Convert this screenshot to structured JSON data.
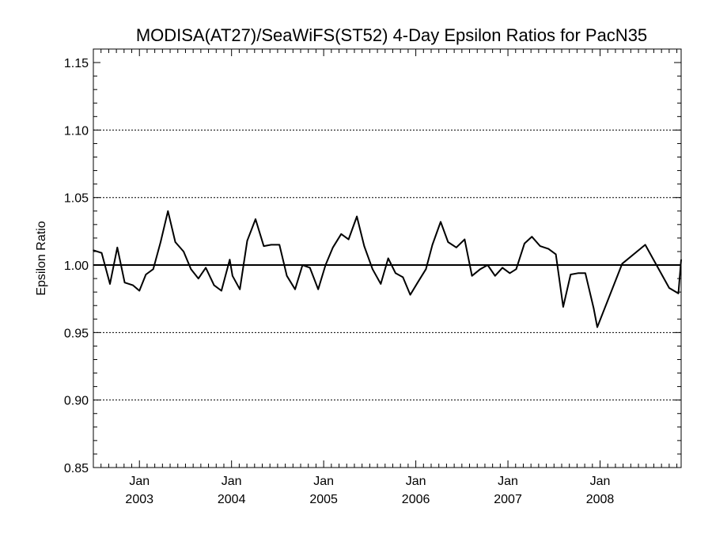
{
  "chart_data": {
    "type": "line",
    "title": "MODISA(AT27)/SeaWiFS(ST52) 4-Day Epsilon Ratios for PacN35",
    "xlabel": "",
    "ylabel": "Epsilon Ratio",
    "xlim": [
      2002.5,
      2008.88
    ],
    "ylim": [
      0.85,
      1.16
    ],
    "yticks": [
      {
        "value": 0.85,
        "label": "0.85"
      },
      {
        "value": 0.9,
        "label": "0.90"
      },
      {
        "value": 0.95,
        "label": "0.95"
      },
      {
        "value": 1.0,
        "label": "1.00"
      },
      {
        "value": 1.05,
        "label": "1.05"
      },
      {
        "value": 1.1,
        "label": "1.10"
      },
      {
        "value": 1.15,
        "label": "1.15"
      }
    ],
    "xticks": [
      {
        "value": 2003.0,
        "month": "Jan",
        "year": "2003"
      },
      {
        "value": 2004.0,
        "month": "Jan",
        "year": "2004"
      },
      {
        "value": 2005.0,
        "month": "Jan",
        "year": "2005"
      },
      {
        "value": 2006.0,
        "month": "Jan",
        "year": "2006"
      },
      {
        "value": 2007.0,
        "month": "Jan",
        "year": "2007"
      },
      {
        "value": 2008.0,
        "month": "Jan",
        "year": "2008"
      }
    ],
    "grid_y": [
      0.9,
      0.95,
      1.05,
      1.1
    ],
    "reference_line": 1.0,
    "series": [
      {
        "x": [
          2002.5,
          2002.59,
          2002.68,
          2002.76,
          2002.84,
          2002.93,
          2003.0,
          2003.07,
          2003.15,
          2003.23,
          2003.31,
          2003.39,
          2003.48,
          2003.56,
          2003.64,
          2003.72,
          2003.81,
          2003.89,
          2003.98,
          2004.01,
          2004.09,
          2004.17,
          2004.26,
          2004.35,
          2004.43,
          2004.52,
          2004.6,
          2004.69,
          2004.77,
          2004.85,
          2004.94,
          2005.02,
          2005.1,
          2005.19,
          2005.27,
          2005.36,
          2005.44,
          2005.53,
          2005.62,
          2005.7,
          2005.78,
          2005.86,
          2005.94,
          2006.02,
          2006.11,
          2006.18,
          2006.27,
          2006.35,
          2006.44,
          2006.53,
          2006.61,
          2006.7,
          2006.78,
          2006.86,
          2006.94,
          2007.02,
          2007.09,
          2007.18,
          2007.26,
          2007.35,
          2007.44,
          2007.52,
          2007.6,
          2007.68,
          2007.76,
          2007.84,
          2007.93,
          2007.97,
          2008.24,
          2008.49,
          2008.75,
          2008.85,
          2008.88
        ],
        "y": [
          1.011,
          1.009,
          0.986,
          1.013,
          0.987,
          0.985,
          0.981,
          0.993,
          0.997,
          1.017,
          1.04,
          1.017,
          1.01,
          0.997,
          0.99,
          0.998,
          0.985,
          0.981,
          1.004,
          0.992,
          0.982,
          1.018,
          1.034,
          1.014,
          1.015,
          1.015,
          0.992,
          0.982,
          1.0,
          0.998,
          0.982,
          1.0,
          1.013,
          1.023,
          1.019,
          1.036,
          1.014,
          0.997,
          0.986,
          1.005,
          0.994,
          0.991,
          0.978,
          0.987,
          0.997,
          1.015,
          1.032,
          1.017,
          1.013,
          1.019,
          0.992,
          0.997,
          1.0,
          0.992,
          0.998,
          0.994,
          0.997,
          1.016,
          1.021,
          1.014,
          1.012,
          1.008,
          0.969,
          0.993,
          0.994,
          0.994,
          0.968,
          0.954,
          1.001,
          1.015,
          0.983,
          0.979,
          1.004
        ]
      }
    ]
  }
}
